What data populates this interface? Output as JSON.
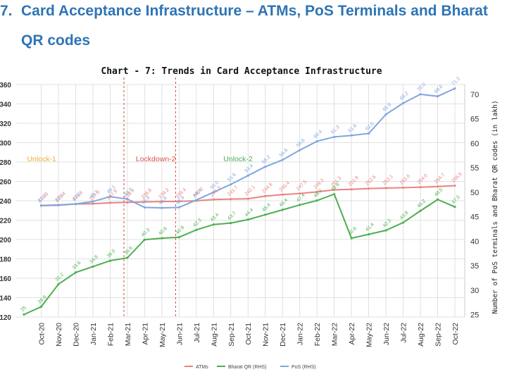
{
  "heading": {
    "number": "7.",
    "line1": "Card Acceptance Infrastructure – ATMs, PoS Terminals and Bharat",
    "line2": "QR codes"
  },
  "colors": {
    "heading": "#2e74b5",
    "atm": "#e8837f",
    "bharat_qr": "#4caf50",
    "pos": "#7fa6e0",
    "lockdown": "#d9534f",
    "unlock1": "#f0ad30",
    "unlock2": "#4caf50",
    "grid": "#d9d9d9"
  },
  "chart_data": {
    "type": "line",
    "title": "Chart - 7: Trends in Card Acceptance Infrastructure",
    "xlabel": "",
    "ylabel": "",
    "y2label": "Number of PoS terminals and Bharat QR codes (in lakh)",
    "categories": [
      "Oct-20",
      "Nov-20",
      "Dec-20",
      "Jan-21",
      "Feb-21",
      "Mar-21",
      "Apr-21",
      "May-21",
      "Jun-21",
      "Jul-21",
      "Aug-21",
      "Sep-21",
      "Oct-21",
      "Nov-21",
      "Dec-21",
      "Jan-22",
      "Feb-22",
      "Mar-22",
      "Apr-22",
      "May-22",
      "Jun-22",
      "Jul-22",
      "Aug-22",
      "Sep-22",
      "Oct-22"
    ],
    "y_left_ticks": [
      "120",
      "140",
      "160",
      "180",
      "200",
      "220",
      "240",
      "260",
      "280",
      "300",
      "320",
      "340",
      "360"
    ],
    "y_right_ticks": [
      "25",
      "30",
      "35",
      "40",
      "45",
      "50",
      "55",
      "60",
      "65",
      "70"
    ],
    "ylim": [
      120,
      360
    ],
    "y2lim": [
      24.5,
      72
    ],
    "grid": true,
    "legend_position": "bottom",
    "series": [
      {
        "name": "ATMs",
        "axis": "left",
        "x": [
          "Oct-20",
          "Nov-20",
          "Dec-20",
          "Jan-21",
          "Feb-21",
          "Mar-21",
          "Apr-21",
          "May-21",
          "Jun-21",
          "Jul-21",
          "Aug-21",
          "Sep-21",
          "Oct-21",
          "Nov-21",
          "Dec-21",
          "Jan-22",
          "Feb-22",
          "Mar-22",
          "Apr-22",
          "May-22",
          "Jun-22",
          "Jul-22",
          "Aug-22",
          "Sep-22",
          "Oct-22"
        ],
        "values": [
          234.9,
          235.4,
          236.6,
          237.0,
          237.9,
          238.4,
          238.8,
          239.2,
          239.4,
          240.0,
          241.3,
          241.7,
          242.1,
          244.8,
          246.4,
          247.5,
          249.2,
          251.3,
          251.8,
          252.6,
          253.1,
          253.5,
          254.0,
          254.7,
          255.6
        ],
        "labels": [
          "234.9",
          "235.4",
          "236.6",
          "237.0",
          "237.9",
          "238.4",
          "238.8",
          "239.2",
          "239.4",
          "240.0",
          "241.3",
          "241.7",
          "242.1",
          "244.8",
          "246.4",
          "247.5",
          "249.2",
          "251.3",
          "251.8",
          "252.6",
          "253.1",
          "253.5",
          "254.0",
          "254.7",
          "255.6"
        ]
      },
      {
        "name": "Bharat QR (RHS)",
        "axis": "right",
        "x": [
          "Sep-20",
          "Oct-20",
          "Nov-20",
          "Dec-20",
          "Jan-21",
          "Feb-21",
          "Mar-21",
          "Apr-21",
          "May-21",
          "Jun-21",
          "Jul-21",
          "Aug-21",
          "Sep-21",
          "Oct-21",
          "Nov-21",
          "Dec-21",
          "Jan-22",
          "Feb-22",
          "Mar-22",
          "Apr-22",
          "May-22",
          "Jun-22",
          "Jul-22",
          "Aug-22",
          "Sep-22",
          "Oct-22"
        ],
        "values": [
          25.0,
          26.6,
          31.2,
          33.6,
          34.8,
          36.0,
          36.6,
          40.3,
          40.6,
          40.8,
          42.3,
          43.4,
          43.7,
          44.4,
          45.4,
          46.4,
          47.4,
          48.3,
          49.6,
          40.6,
          41.4,
          42.2,
          43.8,
          46.2,
          48.5,
          47.0
        ],
        "labels": [
          "25",
          "26.6",
          "31.2",
          "33.6",
          "34.8",
          "36.0",
          "36.6",
          "40.3",
          "40.6",
          "40.8",
          "42.3",
          "43.4",
          "43.7",
          "44.4",
          "45.4",
          "46.4",
          "47.4",
          "48.3",
          "49.6",
          "40.6",
          "41.4",
          "42.2",
          "43.8",
          "46.2",
          "48.5",
          "47.0"
        ]
      },
      {
        "name": "PoS (RHS)",
        "axis": "right",
        "x": [
          "Oct-20",
          "Nov-20",
          "Dec-20",
          "Jan-21",
          "Feb-21",
          "Mar-21",
          "Apr-21",
          "May-21",
          "Jun-21",
          "Jul-21",
          "Aug-21",
          "Sep-21",
          "Oct-21",
          "Nov-21",
          "Dec-21",
          "Jan-22",
          "Feb-22",
          "Mar-22",
          "Apr-22",
          "May-22",
          "Jun-22",
          "Jul-22",
          "Aug-22",
          "Sep-22",
          "Oct-22"
        ],
        "values": [
          47.3,
          47.4,
          47.6,
          48.1,
          49.1,
          48.6,
          46.9,
          46.8,
          46.9,
          48.4,
          50.0,
          51.6,
          53.4,
          55.2,
          56.6,
          58.6,
          60.4,
          61.3,
          61.6,
          62.0,
          65.9,
          68.2,
          70.0,
          69.6,
          71.2
        ],
        "labels": [
          "47.3",
          "47.4",
          "47.6",
          "48.1",
          "49.1",
          "48.6",
          "46.9",
          "46.8",
          "46.9",
          "48.4",
          "50.0",
          "51.6",
          "53.4",
          "55.2",
          "56.6",
          "58.6",
          "60.4",
          "61.3",
          "61.6",
          "62.0",
          "65.9",
          "68.2",
          "70.0",
          "69.6",
          "71.2"
        ]
      }
    ],
    "annotations": [
      {
        "text": "Unlock-1",
        "color": "#f0ad30"
      },
      {
        "text": "Lockdown-2",
        "color": "#d9534f"
      },
      {
        "text": "Unlock-2",
        "color": "#4caf50"
      }
    ]
  }
}
